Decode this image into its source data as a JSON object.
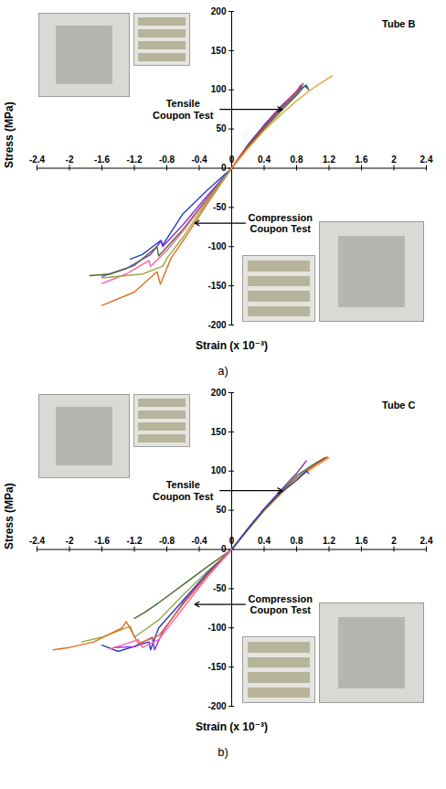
{
  "chart_data": [
    {
      "type": "line",
      "title": "Tube B",
      "xlabel": "Strain (x 10⁻³)",
      "ylabel": "Stress (MPa)",
      "caption": "a)",
      "annotations": [
        "Tensile Coupon Test",
        "Compression Coupon Test"
      ],
      "xlim": [
        -2.4,
        2.4
      ],
      "xticks": [
        -2.4,
        -2,
        -1.6,
        -1.2,
        -0.8,
        -0.4,
        0,
        0.4,
        0.8,
        1.2,
        1.6,
        2,
        2.4
      ],
      "ylim": [
        -200,
        200
      ],
      "yticks": [
        -200,
        -150,
        -100,
        -50,
        0,
        50,
        100,
        150,
        200
      ],
      "grid": false,
      "series": [
        {
          "color": "#1f3fbf",
          "x": [
            0,
            0.2,
            0.4,
            0.6,
            0.8,
            0.92,
            0.95
          ],
          "values": [
            0,
            30,
            55,
            78,
            98,
            106,
            100
          ]
        },
        {
          "color": "#7b2fa8",
          "x": [
            0,
            0.2,
            0.4,
            0.6,
            0.8,
            0.88
          ],
          "values": [
            0,
            28,
            52,
            75,
            95,
            108
          ]
        },
        {
          "color": "#2e7d32",
          "x": [
            0,
            0.2,
            0.4,
            0.6,
            0.8,
            0.9,
            0.93
          ],
          "values": [
            0,
            27,
            50,
            72,
            93,
            105,
            102
          ]
        },
        {
          "color": "#e0304a",
          "x": [
            0,
            0.2,
            0.4,
            0.6,
            0.8,
            0.85
          ],
          "values": [
            0,
            29,
            53,
            77,
            98,
            106
          ]
        },
        {
          "color": "#f0a020",
          "x": [
            0,
            0.2,
            0.4,
            0.6,
            0.8,
            1.0,
            1.24
          ],
          "values": [
            0,
            25,
            48,
            68,
            86,
            102,
            118
          ]
        },
        {
          "color": "#2040c0",
          "x": [
            0,
            -0.3,
            -0.6,
            -0.85,
            -0.87,
            -1.0,
            -1.1,
            -1.25
          ],
          "values": [
            0,
            -28,
            -58,
            -98,
            -92,
            -102,
            -110,
            -116
          ]
        },
        {
          "color": "#8a2be2",
          "x": [
            0,
            -0.3,
            -0.6,
            -0.85,
            -0.87,
            -1.0,
            -1.3,
            -1.6
          ],
          "values": [
            0,
            -35,
            -72,
            -100,
            -93,
            -110,
            -128,
            -138
          ]
        },
        {
          "color": "#4a6a30",
          "x": [
            0,
            -0.3,
            -0.6,
            -0.9,
            -0.92,
            -1.2,
            -1.5,
            -1.75
          ],
          "values": [
            0,
            -38,
            -78,
            -112,
            -100,
            -124,
            -135,
            -137
          ]
        },
        {
          "color": "#ff5fa0",
          "x": [
            0,
            -0.3,
            -0.6,
            -0.8,
            -1.0,
            -1.02,
            -1.3,
            -1.6
          ],
          "values": [
            0,
            -40,
            -80,
            -105,
            -125,
            -118,
            -135,
            -147
          ]
        },
        {
          "color": "#e07020",
          "x": [
            0,
            -0.3,
            -0.55,
            -0.75,
            -0.88,
            -0.92,
            -1.2,
            -1.6
          ],
          "values": [
            0,
            -45,
            -85,
            -115,
            -148,
            -132,
            -158,
            -175
          ]
        },
        {
          "color": "#9aaa40",
          "x": [
            0,
            -0.3,
            -0.6,
            -0.8,
            -0.85,
            -1.1,
            -1.6
          ],
          "values": [
            0,
            -42,
            -88,
            -115,
            -125,
            -135,
            -140
          ]
        }
      ]
    },
    {
      "type": "line",
      "title": "Tube C",
      "xlabel": "Strain (x 10⁻³)",
      "ylabel": "Stress (MPa)",
      "caption": "b)",
      "annotations": [
        "Tensile Coupon Test",
        "Compression Coupon Test"
      ],
      "xlim": [
        -2.4,
        2.4
      ],
      "xticks": [
        -2.4,
        -2,
        -1.6,
        -1.2,
        -0.8,
        -0.4,
        0,
        0.4,
        0.8,
        1.2,
        1.6,
        2,
        2.4
      ],
      "ylim": [
        -200,
        200
      ],
      "yticks": [
        -200,
        -150,
        -100,
        -50,
        0,
        50,
        100,
        150,
        200
      ],
      "grid": false,
      "series": [
        {
          "color": "#7b2fa8",
          "x": [
            0,
            0.2,
            0.4,
            0.6,
            0.8,
            0.92
          ],
          "values": [
            0,
            27,
            52,
            75,
            97,
            113
          ]
        },
        {
          "color": "#2e7d32",
          "x": [
            0,
            0.2,
            0.4,
            0.6,
            0.8,
            1.0,
            1.15
          ],
          "values": [
            0,
            26,
            51,
            73,
            94,
            108,
            117
          ]
        },
        {
          "color": "#e0304a",
          "x": [
            0,
            0.2,
            0.4,
            0.6,
            0.8,
            1.0,
            1.18
          ],
          "values": [
            0,
            25,
            50,
            71,
            91,
            106,
            118
          ]
        },
        {
          "color": "#f0a020",
          "x": [
            0,
            0.2,
            0.4,
            0.6,
            0.8,
            1.0,
            1.2
          ],
          "values": [
            0,
            25,
            49,
            70,
            90,
            104,
            117
          ]
        },
        {
          "color": "#1f3fbf",
          "x": [
            0,
            0.2,
            0.4,
            0.6,
            0.8,
            0.92,
            0.95
          ],
          "values": [
            0,
            26,
            51,
            72,
            88,
            100,
            97
          ]
        },
        {
          "color": "#4a6a30",
          "x": [
            0,
            -0.3,
            -0.6,
            -0.9,
            -1.1,
            -1.2
          ],
          "values": [
            0,
            -22,
            -45,
            -68,
            -82,
            -88
          ]
        },
        {
          "color": "#9aaa40",
          "x": [
            0,
            -0.3,
            -0.6,
            -0.9,
            -1.2,
            -1.25,
            -1.6,
            -1.85
          ],
          "values": [
            0,
            -28,
            -58,
            -90,
            -112,
            -98,
            -112,
            -118
          ]
        },
        {
          "color": "#2040c0",
          "x": [
            0,
            -0.3,
            -0.6,
            -0.9,
            -1.0,
            -1.02,
            -1.4,
            -1.6
          ],
          "values": [
            0,
            -30,
            -65,
            -100,
            -128,
            -118,
            -130,
            -122
          ]
        },
        {
          "color": "#8a2be2",
          "x": [
            0,
            -0.3,
            -0.6,
            -0.85,
            -0.95,
            -0.98,
            -1.2,
            -1.45
          ],
          "values": [
            0,
            -32,
            -68,
            -105,
            -128,
            -112,
            -124,
            -125
          ]
        },
        {
          "color": "#e07020",
          "x": [
            0,
            -0.3,
            -0.6,
            -0.9,
            -1.15,
            -1.3,
            -1.35,
            -1.7,
            -2.0,
            -2.2
          ],
          "values": [
            0,
            -33,
            -70,
            -110,
            -120,
            -92,
            -100,
            -118,
            -125,
            -128
          ]
        },
        {
          "color": "#ff5fa0",
          "x": [
            0,
            -0.3,
            -0.6,
            -0.9,
            -1.1,
            -1.15,
            -1.5
          ],
          "values": [
            0,
            -35,
            -75,
            -115,
            -125,
            -115,
            -127
          ]
        }
      ]
    }
  ]
}
